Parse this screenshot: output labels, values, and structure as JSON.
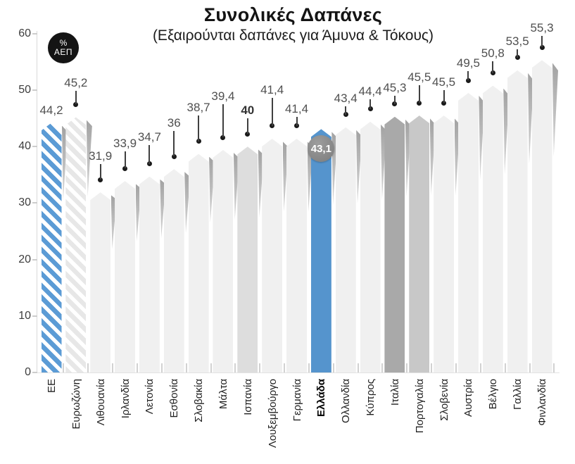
{
  "ui": {
    "note": "static infographic bar chart, Greek language"
  },
  "colors": {
    "accent_blue": "#5594cd",
    "stripe_blue": "#5b9bd5",
    "stripe_gray": "#e7e7e7",
    "bar_light": "#f0f0f0",
    "bar_spain": "#dddddd",
    "bar_portugal": "#c8c8c8",
    "bar_italy": "#a9a9a9",
    "shadow_dark": "#a2a2a2",
    "shadow_light": "#d8d8d8",
    "badge_black": "#141414",
    "badge_gray": "#8a8a8a",
    "axis_gray": "#d9d9d9",
    "value_text": "#4f4f4f"
  },
  "chart_data": {
    "type": "bar",
    "title": "Συνολικές Δαπάνες",
    "subtitle": "(Εξαιρούνται δαπάνες για Άμυνα & Τόκους)",
    "unit": "% ΑΕΠ",
    "unit_badge": {
      "line1": "%",
      "line2": "ΑΕΠ"
    },
    "ylim": [
      0,
      60
    ],
    "yticks": [
      0,
      10,
      20,
      30,
      40,
      50,
      60
    ],
    "grid": false,
    "legend": "none",
    "highlight_category": "Ελλάδα",
    "highlight_badge_label": "43,1",
    "bars": [
      {
        "category": "ΕΕ",
        "value": 44.2,
        "label": "44,2",
        "style": "stripesBlue",
        "leader": null
      },
      {
        "category": "Ευρωζώνη",
        "value": 45.2,
        "label": "45,2",
        "style": "stripesGray",
        "leader": 19
      },
      {
        "category": "Λιθουανία",
        "value": 31.9,
        "label": "31,9",
        "style": "light",
        "leader": 22
      },
      {
        "category": "Ιρλανδία",
        "value": 33.9,
        "label": "33,9",
        "style": "light",
        "leader": 24
      },
      {
        "category": "Λετονία",
        "value": 34.7,
        "label": "34,7",
        "style": "light",
        "leader": 27
      },
      {
        "category": "Εσθονία",
        "value": 36,
        "label": "36",
        "style": "light",
        "leader": 36
      },
      {
        "category": "Σλοβακία",
        "value": 38.7,
        "label": "38,7",
        "style": "light",
        "leader": 37
      },
      {
        "category": "Μάλτα",
        "value": 39.4,
        "label": "39,4",
        "style": "light",
        "leader": 47
      },
      {
        "category": "Ισπανία",
        "value": 40,
        "label": "40",
        "style": "spain",
        "leader": 22,
        "value_bold": true
      },
      {
        "category": "Λουξεμβούργο",
        "value": 41.4,
        "label": "41,4",
        "style": "light",
        "leader": 40
      },
      {
        "category": "Γερμανία",
        "value": 41.4,
        "label": "41,4",
        "style": "light",
        "leader": 13
      },
      {
        "category": "Ελλάδα",
        "value": 43.1,
        "label": "43,1",
        "style": "greece",
        "leader": null,
        "badge": true,
        "axis_bold": true
      },
      {
        "category": "Ολλανδία",
        "value": 43.4,
        "label": "43,4",
        "style": "light",
        "leader": 12
      },
      {
        "category": "Κύπρος",
        "value": 44.4,
        "label": "44,4",
        "style": "light",
        "leader": 14
      },
      {
        "category": "Ιταλία",
        "value": 45.3,
        "label": "45,3",
        "style": "italy",
        "leader": 12
      },
      {
        "category": "Πορτογαλία",
        "value": 45.5,
        "label": "45,5",
        "style": "portugal",
        "leader": 25
      },
      {
        "category": "Σλοβενία",
        "value": 45.5,
        "label": "45,5",
        "style": "light",
        "leader": 18
      },
      {
        "category": "Αυστρία",
        "value": 49.5,
        "label": "49,5",
        "style": "light",
        "leader": 13
      },
      {
        "category": "Βέλγιο",
        "value": 50.8,
        "label": "50,8",
        "style": "light",
        "leader": 17
      },
      {
        "category": "Γαλλία",
        "value": 53.5,
        "label": "53,5",
        "style": "light",
        "leader": 12
      },
      {
        "category": "Φινλανδία",
        "value": 55.3,
        "label": "55,3",
        "style": "light",
        "leader": 16
      }
    ]
  }
}
